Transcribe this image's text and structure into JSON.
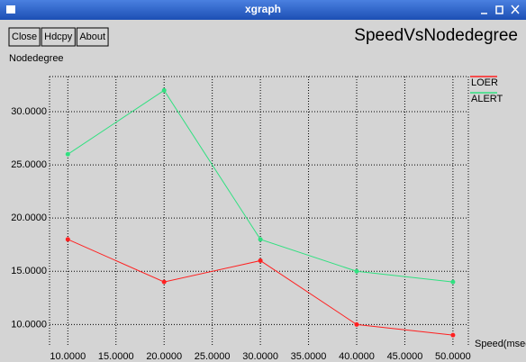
{
  "window": {
    "title": "xgraph",
    "buttons": [
      "Close",
      "Hdcpy",
      "About"
    ]
  },
  "chart_data": {
    "type": "line",
    "title": "SpeedVsNodedegree",
    "y_label": "Nodedegree",
    "x_label": "Speed(msec",
    "x": [
      10,
      20,
      30,
      40,
      50
    ],
    "series": [
      {
        "name": "LOER",
        "color": "#ff2020",
        "values": [
          18,
          14,
          16,
          10,
          9
        ]
      },
      {
        "name": "ALERT",
        "color": "#30e080",
        "values": [
          26,
          32,
          18,
          15,
          14
        ]
      }
    ],
    "xlim": [
      8.1,
      51.6
    ],
    "xticks": [
      {
        "value": 10,
        "label": "10.0000"
      },
      {
        "value": 15,
        "label": "15.0000"
      },
      {
        "value": 20,
        "label": "20.0000"
      },
      {
        "value": 25,
        "label": "25.0000"
      },
      {
        "value": 30,
        "label": "30.0000"
      },
      {
        "value": 35,
        "label": "35.0000"
      },
      {
        "value": 40,
        "label": "40.0000"
      },
      {
        "value": 45,
        "label": "45.0000"
      },
      {
        "value": 50,
        "label": "50.0000"
      }
    ],
    "ylim": [
      8,
      33.3
    ],
    "yticks": [
      {
        "value": 10,
        "label": "10.0000"
      },
      {
        "value": 15,
        "label": "15.0000"
      },
      {
        "value": 20,
        "label": "20.0000"
      },
      {
        "value": 25,
        "label": "25.0000"
      },
      {
        "value": 30,
        "label": "30.0000"
      }
    ],
    "grid": true
  }
}
